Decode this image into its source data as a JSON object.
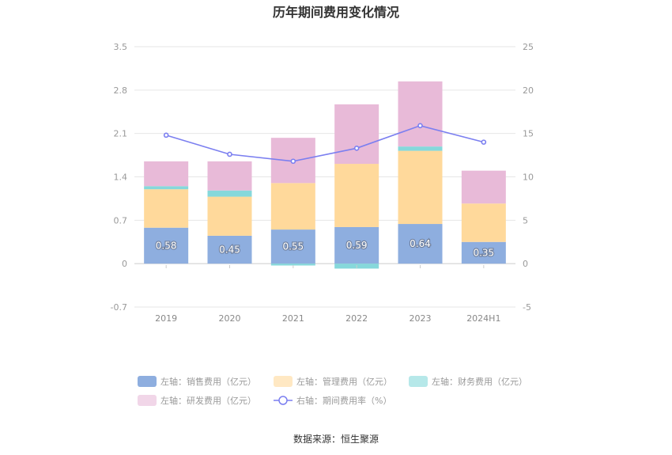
{
  "chart_data": {
    "type": "bar",
    "title": "历年期间费用变化情况",
    "source": "数据来源：恒生聚源",
    "categories": [
      "2019",
      "2020",
      "2021",
      "2022",
      "2023",
      "2024H1"
    ],
    "stacked": true,
    "left_axis": {
      "ylim": [
        -0.7,
        3.5
      ],
      "ticks": [
        "3.5",
        "2.8",
        "2.1",
        "1.4",
        "0.7",
        "0",
        "-0.7"
      ],
      "tick_values": [
        3.5,
        2.8,
        2.1,
        1.4,
        0.7,
        0,
        -0.7
      ]
    },
    "right_axis": {
      "ylim": [
        -5,
        25
      ],
      "ticks": [
        "25",
        "20",
        "15",
        "10",
        "5",
        "0",
        "-5"
      ],
      "tick_values": [
        25,
        20,
        15,
        10,
        5,
        0,
        -5
      ]
    },
    "series": [
      {
        "name": "左轴：销售费用（亿元）",
        "type": "bar",
        "axis": "left",
        "color": "#8eaedf",
        "values": [
          0.58,
          0.45,
          0.55,
          0.59,
          0.64,
          0.35
        ],
        "labels": [
          "0.58",
          "0.45",
          "0.55",
          "0.59",
          "0.64",
          "0.35"
        ]
      },
      {
        "name": "左轴：管理费用（亿元）",
        "type": "bar",
        "axis": "left",
        "color": "#ffd99b",
        "values": [
          0.62,
          0.63,
          0.75,
          1.02,
          1.18,
          0.62
        ]
      },
      {
        "name": "左轴：财务费用（亿元）",
        "type": "bar",
        "axis": "left",
        "color": "#86d8db",
        "values": [
          0.05,
          0.1,
          -0.03,
          -0.08,
          0.07,
          0.0
        ]
      },
      {
        "name": "左轴：研发费用（亿元）",
        "type": "bar",
        "axis": "left",
        "color": "#e8bad8",
        "values": [
          0.4,
          0.47,
          0.73,
          0.96,
          1.05,
          0.53
        ]
      },
      {
        "name": "右轴：期间费用率（%）",
        "type": "line",
        "axis": "right",
        "color": "#7b7ff0",
        "values": [
          14.8,
          12.6,
          11.8,
          13.3,
          15.9,
          14.0
        ]
      }
    ],
    "grid": true,
    "legend_position": "bottom"
  }
}
